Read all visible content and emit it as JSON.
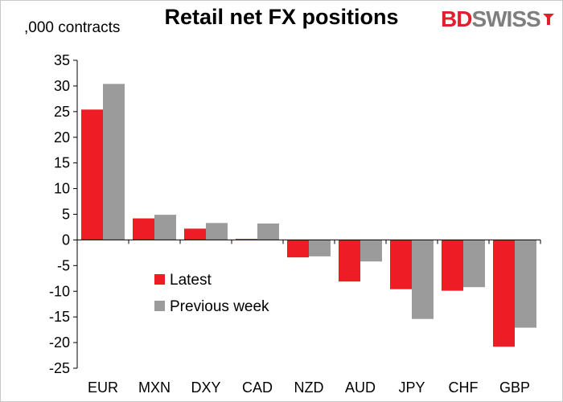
{
  "logo": {
    "part1": "BD",
    "part2": "SWISS"
  },
  "chart_data": {
    "type": "bar",
    "title": "Retail net FX positions",
    "unit_label": ",000 contracts",
    "categories": [
      "EUR",
      "MXN",
      "DXY",
      "CAD",
      "NZD",
      "AUD",
      "JPY",
      "CHF",
      "GBP"
    ],
    "series": [
      {
        "name": "Latest",
        "color": "#ee1c25",
        "values": [
          25.4,
          4.2,
          2.2,
          0.2,
          -3.4,
          -8.1,
          -9.6,
          -9.9,
          -20.8
        ]
      },
      {
        "name": "Previous week",
        "color": "#9b9b9b",
        "values": [
          30.4,
          4.9,
          3.3,
          3.2,
          -3.2,
          -4.2,
          -15.4,
          -9.2,
          -17.1
        ]
      }
    ],
    "ylim": [
      -25,
      35
    ],
    "yticks": [
      35,
      30,
      25,
      20,
      15,
      10,
      5,
      0,
      -5,
      -10,
      -15,
      -20,
      -25
    ],
    "grid": false,
    "legend_position": "inside-lower-left"
  }
}
